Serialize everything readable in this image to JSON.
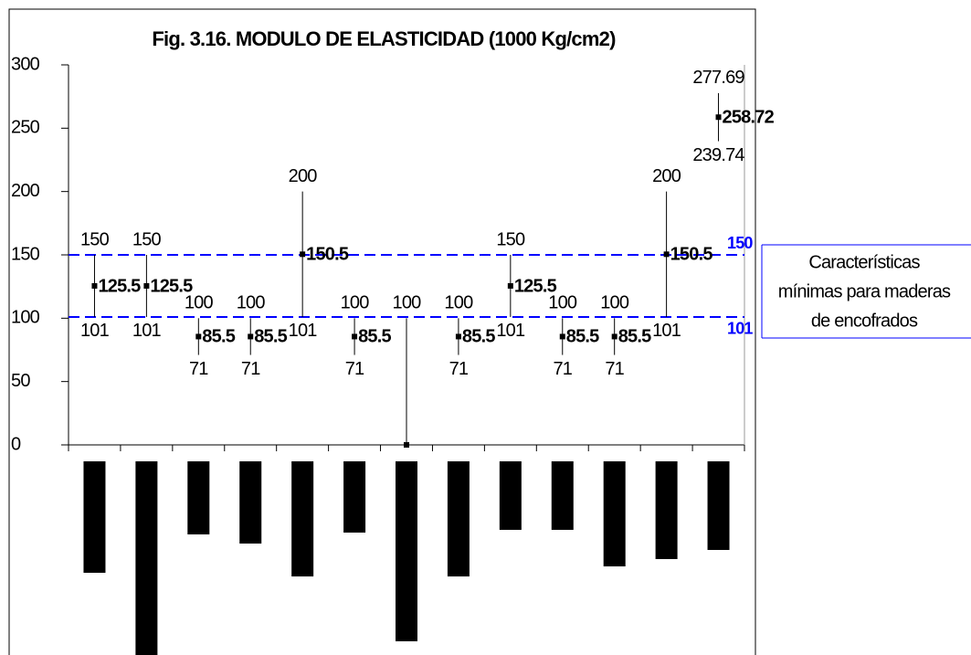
{
  "chart_data": {
    "type": "high-low",
    "title": "Fig. 3.16. MODULO DE ELASTICIDAD (1000 Kg/cm2)",
    "categories": [
      null,
      null,
      null,
      null,
      null,
      null,
      null,
      null,
      null,
      null,
      null,
      null,
      null
    ],
    "high": {
      "values": [
        150,
        150,
        100,
        100,
        200,
        100,
        100,
        100,
        150,
        100,
        100,
        200,
        277.69
      ]
    },
    "low": {
      "values": [
        101,
        101,
        71,
        71,
        101,
        71,
        0,
        71,
        101,
        71,
        71,
        101,
        239.74
      ],
      "value_labels": [
        "101",
        "101",
        "71",
        "71",
        "101",
        "71",
        null,
        "71",
        "101",
        "71",
        "71",
        "101",
        "239.74"
      ]
    },
    "mean": {
      "values": [
        125.5,
        125.5,
        85.5,
        85.5,
        150.5,
        85.5,
        0,
        85.5,
        125.5,
        85.5,
        85.5,
        150.5,
        258.72
      ],
      "value_labels": [
        "125.5",
        "125.5",
        "85.5",
        "85.5",
        "150.5",
        "85.5",
        null,
        "85.5",
        "125.5",
        "85.5",
        "85.5",
        "150.5",
        "258.72"
      ]
    },
    "color": "#000000",
    "ylim": [
      0,
      300
    ],
    "yticks": [
      0,
      50,
      100,
      150,
      200,
      250,
      300
    ],
    "reference_lines": [
      {
        "value": 150,
        "label": "150"
      },
      {
        "value": 101,
        "label": "101"
      }
    ],
    "reference_color": "#0000ff",
    "annotation": [
      "Características",
      "mínimas para maderas",
      "de encofrados"
    ]
  }
}
